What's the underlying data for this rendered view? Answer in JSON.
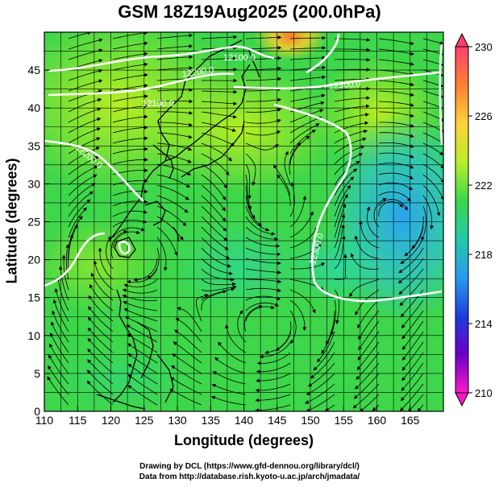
{
  "title": "GSM 18Z19Aug2025 (200.0hPa)",
  "x_axis": {
    "label": "Longitude (degrees)",
    "ticks": [
      "110",
      "115",
      "120",
      "125",
      "130",
      "135",
      "140",
      "145",
      "150",
      "155",
      "160",
      "165"
    ],
    "range": [
      110,
      170
    ]
  },
  "y_axis": {
    "label": "Latitude  (degrees)",
    "ticks": [
      "0",
      "5",
      "10",
      "15",
      "20",
      "25",
      "30",
      "35",
      "40",
      "45"
    ],
    "range": [
      0,
      50
    ]
  },
  "colorbar": {
    "ticks": [
      "230",
      "226",
      "222",
      "218",
      "214",
      "210"
    ],
    "range": [
      210,
      230
    ],
    "colors": [
      "#ff3f6f",
      "#ff8030",
      "#ffd23a",
      "#b9ee2a",
      "#3ad84a",
      "#22c8a8",
      "#2a9bef",
      "#1d3ddd",
      "#6a00c8",
      "#ff19c8"
    ]
  },
  "contour_labels": [
    "12100.0",
    "12200.0",
    "12100.0",
    "12300.0",
    "12200.0",
    "12300.0"
  ],
  "credits": {
    "line1": "Drawing by DCL (https://www.gfd-dennou.org/library/dcl/)",
    "line2": "Data from http://database.rish.kyoto-u.ac.jp/arch/jmadata/"
  }
}
